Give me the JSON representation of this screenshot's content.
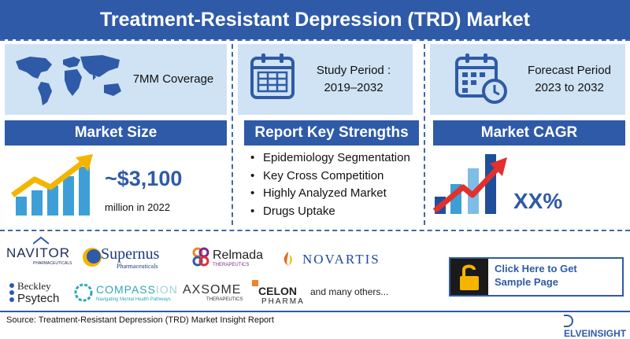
{
  "header": {
    "title": "Treatment-Resistant Depression (TRD) Market"
  },
  "cards": {
    "coverage": "7MM Coverage",
    "study_label": "Study Period :",
    "study_value": "2019–2032",
    "forecast_label": "Forecast Period",
    "forecast_value": "2023 to 2032"
  },
  "sections": {
    "size_title": "Market Size",
    "strengths_title": "Report Key Strengths",
    "cagr_title": "Market CAGR"
  },
  "market_size": {
    "value": "~$3,100",
    "sub": "million in 2022"
  },
  "strengths": [
    "Epidemiology Segmentation",
    "Key Cross Competition",
    "Highly Analyzed Market",
    "Drugs Uptake"
  ],
  "cagr": {
    "value": "XX%"
  },
  "companies": {
    "navitor": "NAVITOR",
    "navitor_sub": "PHARMACEUTICALS",
    "supernus": "Supernus",
    "supernus_sub": "Pharmaceuticals",
    "relmada": "Relmada",
    "relmada_sub": "THERAPEUTICS",
    "novartis": "NOVARTIS",
    "beckley_1": "Beckley",
    "beckley_2": "Psytech",
    "compass": "COMPASS",
    "compass_partial": "ION",
    "compass_sub": "Navigating Mental Health Pathways",
    "axsome": "AXSOME",
    "axsome_sub": "THERAPEUTICS",
    "celon_1": "CELON",
    "celon_2": "PHARMA",
    "more": "and many others..."
  },
  "cta": {
    "line1": "Click Here to Get",
    "line2": "Sample Page"
  },
  "footer": {
    "source": "Source: Treatment-Resistant Depression (TRD) Market Insight Report"
  },
  "brand": {
    "name": "ELVEINSIGHT"
  },
  "colors": {
    "primary": "#2f5aa8",
    "card_bg": "#cfe3f4",
    "arrow_red": "#e0312f",
    "arrow_gold": "#f5b400",
    "bar_blue": "#3d9fd6"
  }
}
